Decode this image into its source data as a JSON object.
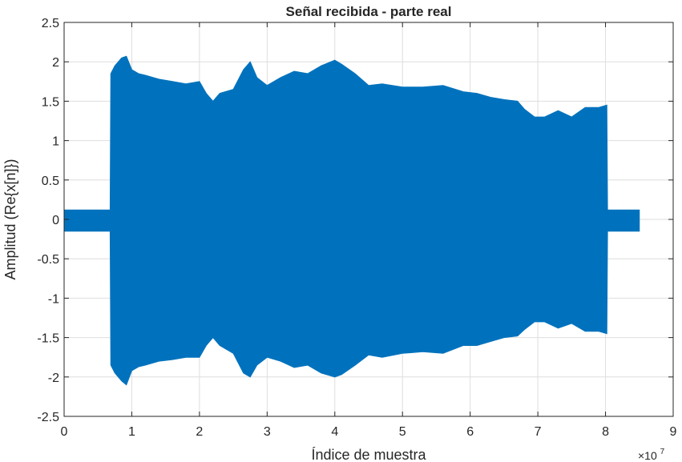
{
  "chart_data": {
    "type": "area",
    "title": "Señal recibida - parte real",
    "xlabel": "Índice de muestra",
    "ylabel": "Amplitud  (Re{x[n]})",
    "x_exponent_base": "×10",
    "x_exponent_power": "7",
    "xlim": [
      0,
      9
    ],
    "ylim": [
      -2.5,
      2.5
    ],
    "x_tick_values": [
      0,
      1,
      2,
      3,
      4,
      5,
      6,
      7,
      8,
      9
    ],
    "x_tick_labels": [
      "0",
      "1",
      "2",
      "3",
      "4",
      "5",
      "6",
      "7",
      "8",
      "9"
    ],
    "y_tick_values": [
      2.5,
      2,
      1.5,
      1,
      0.5,
      0,
      -0.5,
      -1,
      -1.5,
      -2,
      -2.5
    ],
    "y_tick_labels": [
      "2.5",
      "2",
      "1.5",
      "1",
      "0.5",
      "0",
      "-0.5",
      "-1",
      "-1.5",
      "-2",
      "-2.5"
    ],
    "grid": true,
    "series": [
      {
        "color": "#0072BD",
        "x": [
          0,
          0.68,
          0.69,
          0.75,
          0.85,
          0.92,
          1.0,
          1.1,
          1.2,
          1.4,
          1.6,
          1.8,
          2.0,
          2.1,
          2.2,
          2.3,
          2.5,
          2.65,
          2.75,
          2.85,
          3.0,
          3.2,
          3.4,
          3.6,
          3.8,
          4.0,
          4.1,
          4.3,
          4.5,
          4.7,
          5.0,
          5.3,
          5.6,
          5.9,
          6.1,
          6.3,
          6.5,
          6.7,
          6.8,
          6.95,
          7.1,
          7.3,
          7.5,
          7.7,
          7.9,
          8.02,
          8.03,
          8.5
        ],
        "envelope_upper": [
          0.12,
          0.12,
          1.85,
          1.95,
          2.05,
          2.07,
          1.9,
          1.85,
          1.83,
          1.78,
          1.75,
          1.72,
          1.75,
          1.6,
          1.5,
          1.6,
          1.65,
          1.9,
          2.0,
          1.8,
          1.7,
          1.8,
          1.88,
          1.85,
          1.95,
          2.02,
          1.97,
          1.85,
          1.7,
          1.72,
          1.68,
          1.68,
          1.7,
          1.62,
          1.6,
          1.55,
          1.52,
          1.5,
          1.4,
          1.3,
          1.3,
          1.38,
          1.3,
          1.42,
          1.42,
          1.45,
          0.12,
          0.12
        ],
        "envelope_lower": [
          -0.15,
          -0.15,
          -1.85,
          -1.95,
          -2.05,
          -2.1,
          -1.92,
          -1.87,
          -1.85,
          -1.8,
          -1.78,
          -1.75,
          -1.75,
          -1.6,
          -1.5,
          -1.6,
          -1.7,
          -1.95,
          -2.0,
          -1.85,
          -1.75,
          -1.8,
          -1.88,
          -1.85,
          -1.95,
          -2.0,
          -1.97,
          -1.85,
          -1.72,
          -1.75,
          -1.7,
          -1.68,
          -1.7,
          -1.6,
          -1.6,
          -1.55,
          -1.5,
          -1.48,
          -1.4,
          -1.3,
          -1.3,
          -1.38,
          -1.32,
          -1.42,
          -1.42,
          -1.45,
          -0.15,
          -0.15
        ]
      }
    ]
  }
}
